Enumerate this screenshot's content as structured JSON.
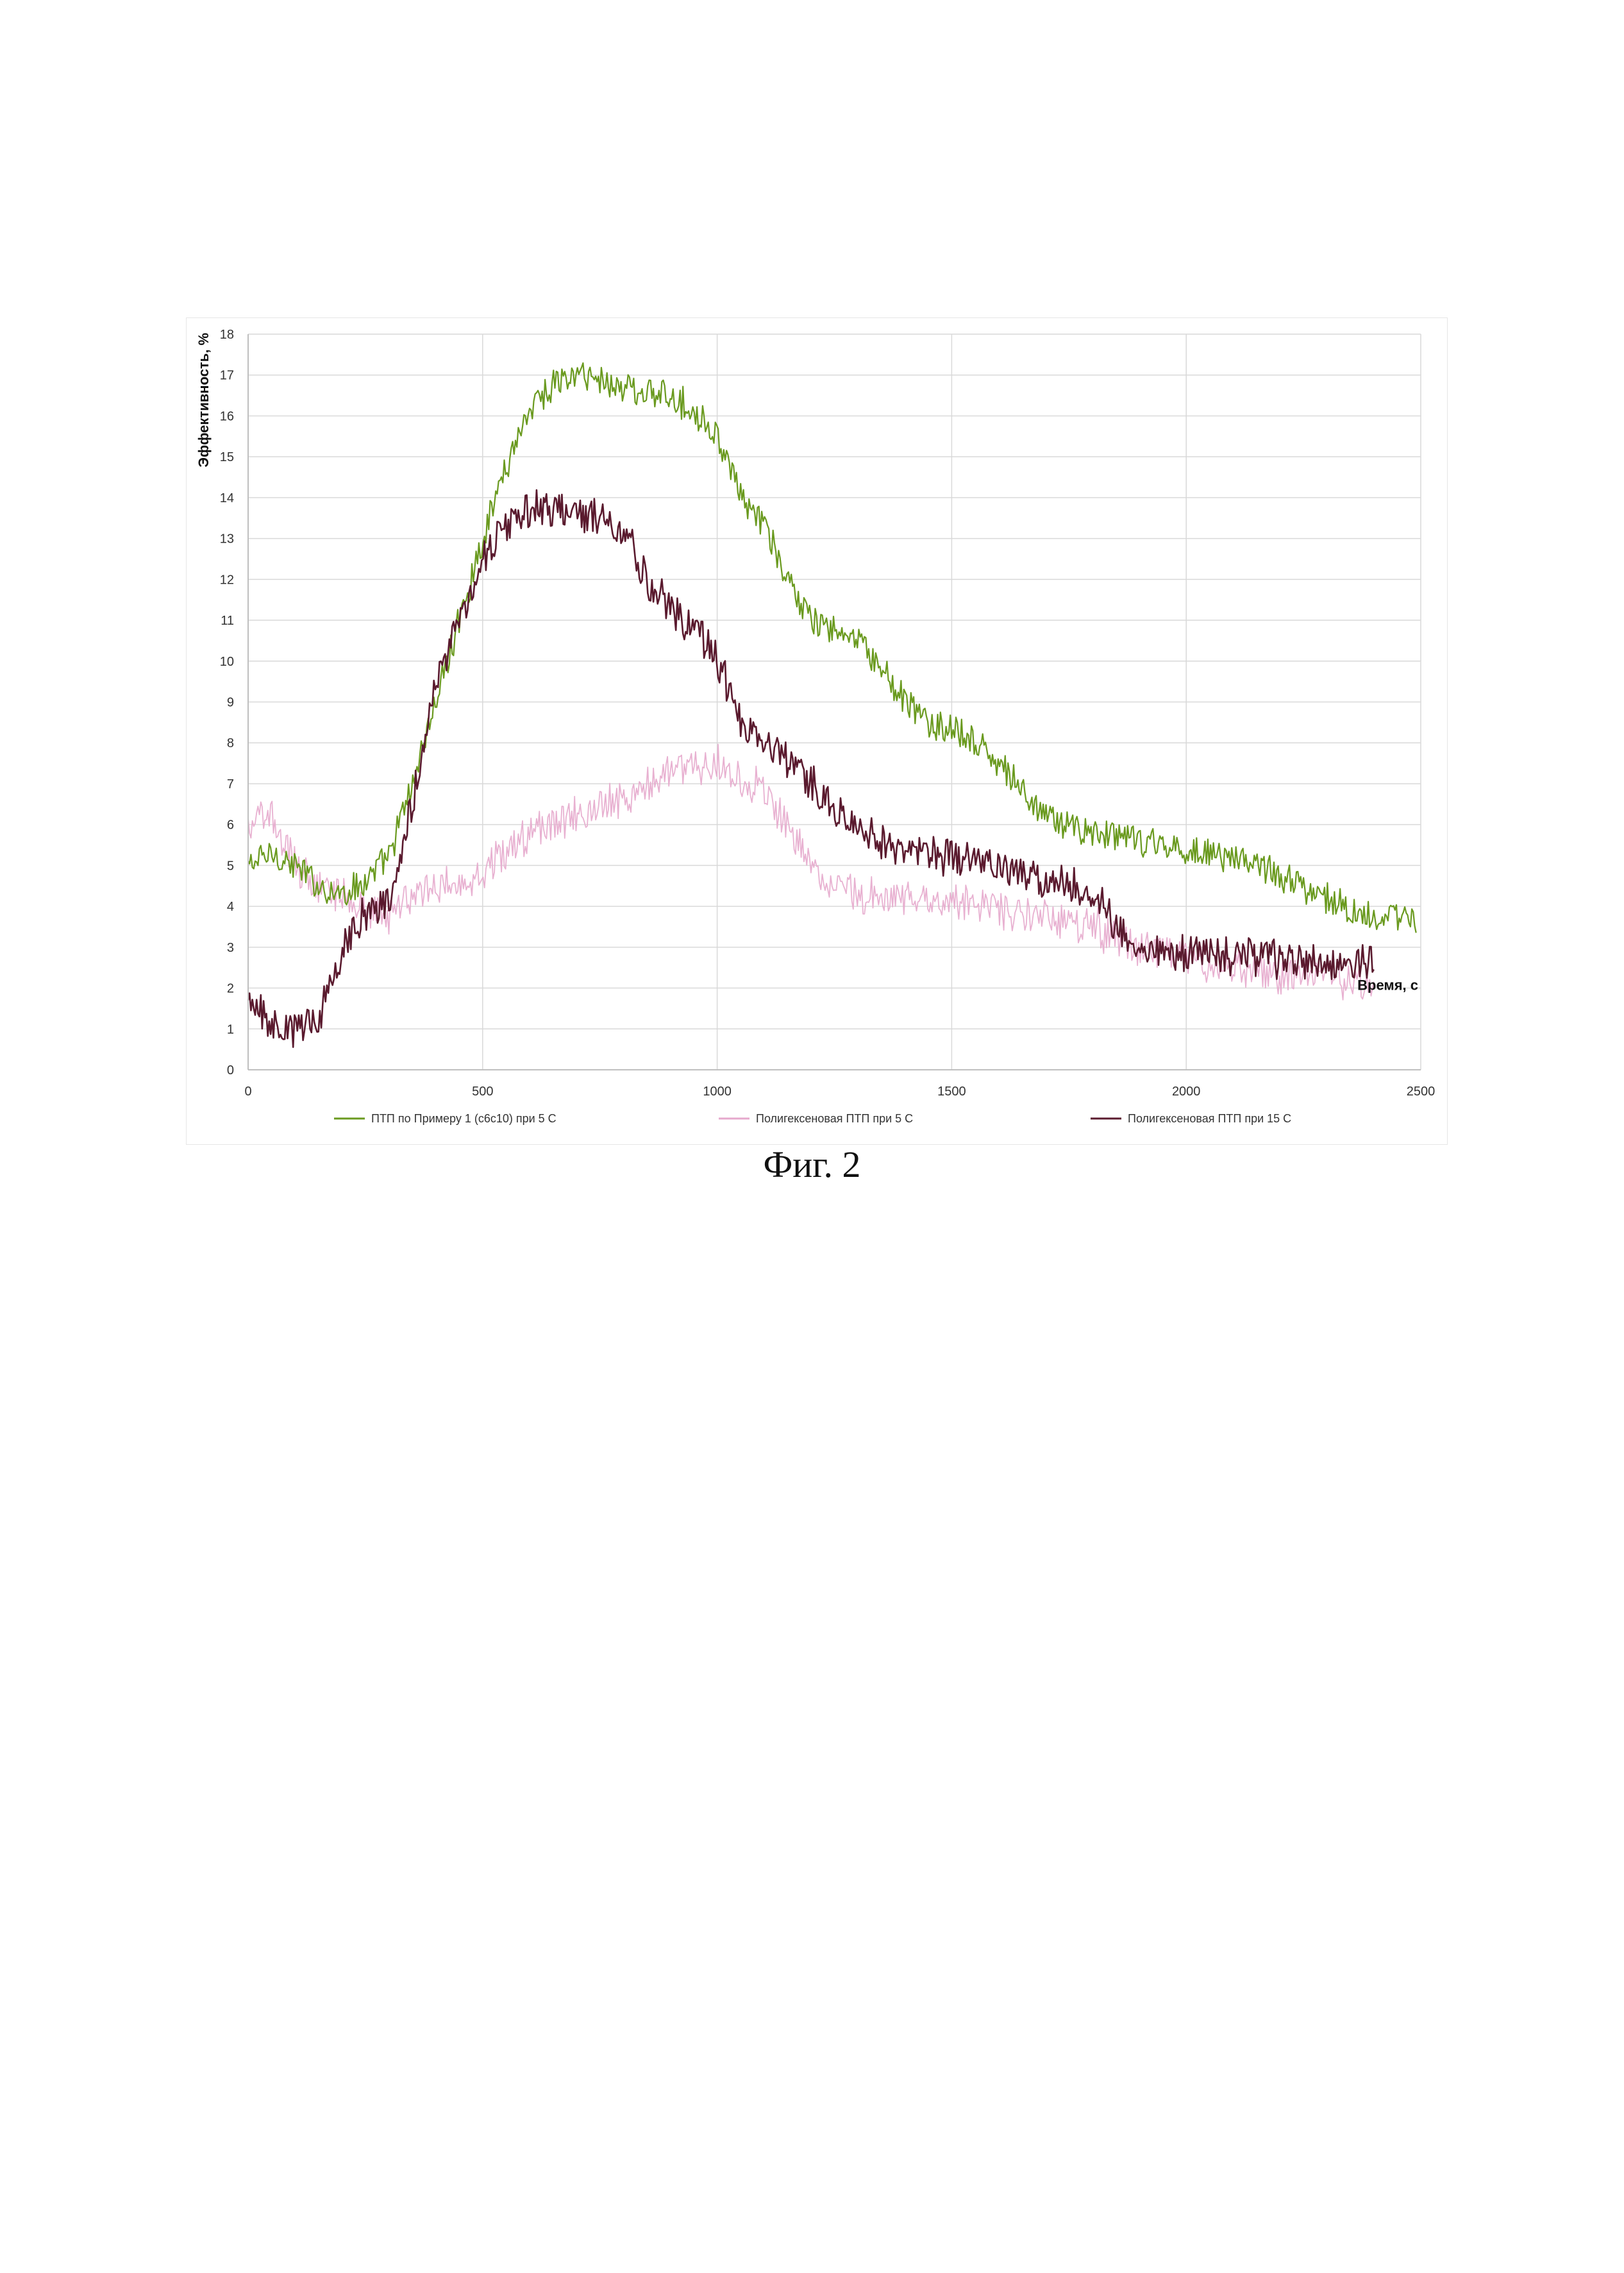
{
  "figure": {
    "caption": "Фиг. 2"
  },
  "chart_data": {
    "type": "line",
    "ylabel": "Эффективность, %",
    "xlabel": "Время, с",
    "xlim": [
      0,
      2500
    ],
    "ylim": [
      0,
      18
    ],
    "x_ticks": [
      0,
      500,
      1000,
      1500,
      2000,
      2500
    ],
    "y_ticks": [
      0,
      1,
      2,
      3,
      4,
      5,
      6,
      7,
      8,
      9,
      10,
      11,
      12,
      13,
      14,
      15,
      16,
      17,
      18
    ],
    "grid": true,
    "legend_position": "bottom",
    "series": [
      {
        "name": "ПТП по Примеру 1 (с6с10) при 5 С",
        "color": "#6a9a1f",
        "noise": 0.45,
        "x": [
          0,
          50,
          100,
          150,
          200,
          250,
          300,
          350,
          400,
          450,
          500,
          550,
          600,
          650,
          700,
          750,
          800,
          850,
          900,
          950,
          1000,
          1050,
          1100,
          1150,
          1200,
          1250,
          1300,
          1350,
          1400,
          1450,
          1500,
          1550,
          1600,
          1650,
          1700,
          1750,
          1800,
          1850,
          1900,
          1950,
          2000,
          2050,
          2100,
          2150,
          2200,
          2250,
          2300,
          2350,
          2400,
          2450,
          2490
        ],
        "y": [
          5.0,
          5.3,
          5.0,
          4.5,
          4.3,
          4.6,
          5.2,
          7.0,
          9.0,
          11.0,
          13.0,
          14.8,
          16.2,
          16.8,
          17.0,
          16.9,
          16.7,
          16.6,
          16.4,
          16.2,
          15.5,
          14.0,
          13.3,
          12.0,
          11.0,
          10.7,
          10.5,
          9.8,
          9.0,
          8.5,
          8.3,
          8.0,
          7.5,
          6.8,
          6.2,
          6.0,
          5.8,
          5.7,
          5.6,
          5.5,
          5.4,
          5.3,
          5.2,
          5.0,
          4.8,
          4.5,
          4.2,
          3.9,
          3.8,
          3.7,
          3.6
        ]
      },
      {
        "name": "Полигексеновая ПТП при 5 С",
        "color": "#e6a8cc",
        "noise": 0.55,
        "x": [
          0,
          50,
          100,
          150,
          200,
          250,
          300,
          350,
          400,
          450,
          500,
          550,
          600,
          650,
          700,
          750,
          800,
          850,
          900,
          950,
          1000,
          1050,
          1100,
          1150,
          1200,
          1250,
          1300,
          1350,
          1400,
          1450,
          1500,
          1550,
          1600,
          1650,
          1700,
          1750,
          1800,
          1850,
          1900,
          1950,
          2000,
          2050,
          2100,
          2150,
          2200,
          2250,
          2300,
          2350,
          2400
        ],
        "y": [
          6.0,
          6.2,
          5.0,
          4.5,
          4.3,
          4.0,
          3.8,
          4.2,
          4.5,
          4.6,
          4.8,
          5.3,
          5.8,
          6.0,
          6.2,
          6.5,
          6.5,
          7.0,
          7.3,
          7.5,
          7.5,
          7.2,
          6.8,
          6.0,
          5.0,
          4.5,
          4.3,
          4.2,
          4.2,
          4.2,
          4.0,
          4.0,
          3.9,
          3.8,
          3.8,
          3.6,
          3.5,
          3.2,
          3.0,
          2.9,
          2.8,
          2.6,
          2.5,
          2.4,
          2.3,
          2.3,
          2.2,
          2.2,
          2.2
        ]
      },
      {
        "name": "Полигексеновая ПТП при 15 С",
        "color": "#5a1a2e",
        "noise": 0.55,
        "x": [
          0,
          50,
          100,
          150,
          200,
          250,
          300,
          350,
          400,
          450,
          500,
          550,
          600,
          650,
          700,
          750,
          800,
          850,
          900,
          950,
          1000,
          1050,
          1100,
          1150,
          1200,
          1250,
          1300,
          1350,
          1400,
          1450,
          1500,
          1550,
          1600,
          1650,
          1700,
          1750,
          1800,
          1850,
          1900,
          1950,
          2000,
          2050,
          2100,
          2150,
          2200,
          2250,
          2300,
          2350,
          2400
        ],
        "y": [
          1.5,
          1.2,
          1.0,
          1.3,
          3.0,
          3.8,
          4.2,
          6.5,
          9.5,
          11.0,
          12.5,
          13.3,
          13.7,
          13.7,
          13.6,
          13.5,
          13.2,
          12.0,
          11.2,
          10.8,
          10.0,
          8.5,
          8.0,
          7.5,
          7.0,
          6.3,
          6.0,
          5.5,
          5.3,
          5.2,
          5.2,
          5.0,
          5.0,
          4.8,
          4.6,
          4.5,
          4.3,
          3.5,
          3.0,
          2.9,
          2.8,
          2.8,
          2.8,
          2.7,
          2.7,
          2.6,
          2.6,
          2.6,
          2.6
        ]
      }
    ]
  }
}
